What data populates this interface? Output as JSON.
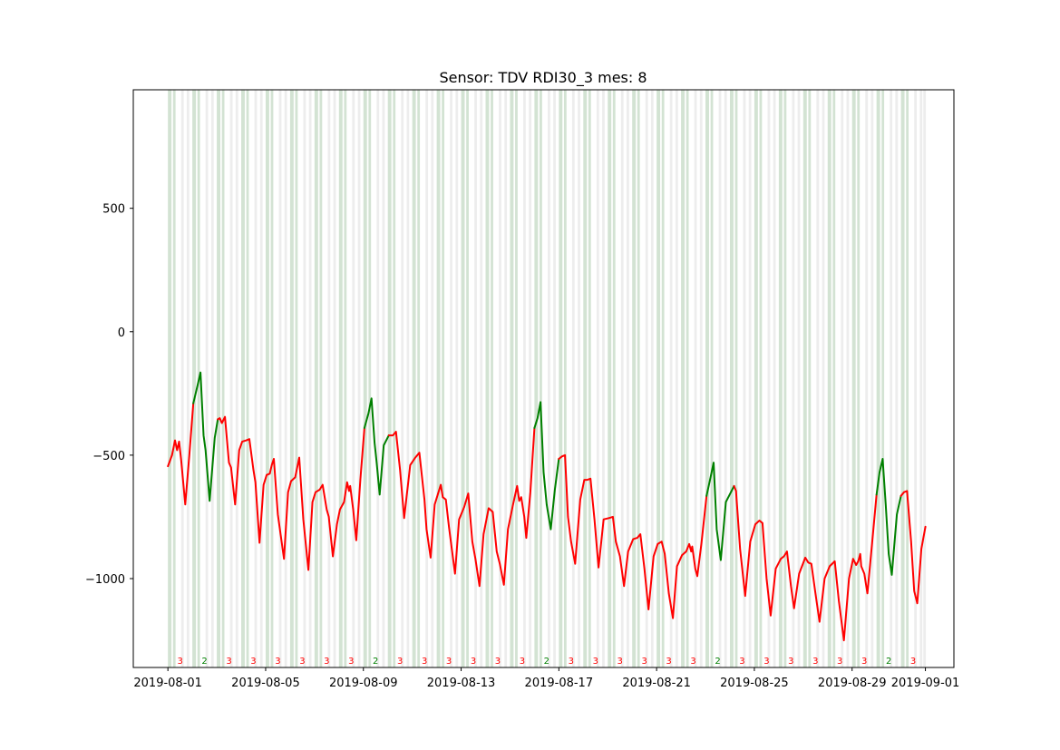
{
  "chart_data": {
    "type": "line",
    "title": "Sensor: TDV RDI30_3 mes: 8",
    "xlabel": "",
    "ylabel": "",
    "x_range": [
      "2019-07-30T14:00",
      "2019-09-02T04:00"
    ],
    "ylim": [
      -1360,
      980
    ],
    "y_ticks": [
      500,
      0,
      -500,
      -1000
    ],
    "y_tick_labels": [
      "500",
      "0",
      "−500",
      "−1000"
    ],
    "x_ticks": [
      "2019-08-01",
      "2019-08-05",
      "2019-08-09",
      "2019-08-13",
      "2019-08-17",
      "2019-08-21",
      "2019-08-25",
      "2019-08-29",
      "2019-09-01"
    ],
    "x_tick_labels": [
      "2019-08-01",
      "2019-08-05",
      "2019-08-09",
      "2019-08-13",
      "2019-08-17",
      "2019-08-21",
      "2019-08-25",
      "2019-08-29",
      "2019-09-01"
    ],
    "grid": false,
    "colors": {
      "class_2": "#008000",
      "class_3": "#ff0000",
      "band_green": "#c8dcc8",
      "band_gray": "#e6e6e6"
    },
    "day_labels": [
      {
        "date": "2019-08-01",
        "label": "3"
      },
      {
        "date": "2019-08-02",
        "label": "2"
      },
      {
        "date": "2019-08-03",
        "label": "3"
      },
      {
        "date": "2019-08-04",
        "label": "3"
      },
      {
        "date": "2019-08-05",
        "label": "3"
      },
      {
        "date": "2019-08-06",
        "label": "3"
      },
      {
        "date": "2019-08-07",
        "label": "3"
      },
      {
        "date": "2019-08-08",
        "label": "3"
      },
      {
        "date": "2019-08-09",
        "label": "2"
      },
      {
        "date": "2019-08-10",
        "label": "3"
      },
      {
        "date": "2019-08-11",
        "label": "3"
      },
      {
        "date": "2019-08-12",
        "label": "3"
      },
      {
        "date": "2019-08-13",
        "label": "3"
      },
      {
        "date": "2019-08-14",
        "label": "3"
      },
      {
        "date": "2019-08-15",
        "label": "3"
      },
      {
        "date": "2019-08-16",
        "label": "2"
      },
      {
        "date": "2019-08-17",
        "label": "3"
      },
      {
        "date": "2019-08-18",
        "label": "3"
      },
      {
        "date": "2019-08-19",
        "label": "3"
      },
      {
        "date": "2019-08-20",
        "label": "3"
      },
      {
        "date": "2019-08-21",
        "label": "3"
      },
      {
        "date": "2019-08-22",
        "label": "3"
      },
      {
        "date": "2019-08-23",
        "label": "2"
      },
      {
        "date": "2019-08-24",
        "label": "3"
      },
      {
        "date": "2019-08-25",
        "label": "3"
      },
      {
        "date": "2019-08-26",
        "label": "3"
      },
      {
        "date": "2019-08-27",
        "label": "3"
      },
      {
        "date": "2019-08-28",
        "label": "3"
      },
      {
        "date": "2019-08-29",
        "label": "3"
      },
      {
        "date": "2019-08-30",
        "label": "2"
      },
      {
        "date": "2019-08-31",
        "label": "3"
      }
    ],
    "series": [
      {
        "class": "3",
        "points": [
          [
            "2019-08-01T00:00",
            -545
          ],
          [
            "2019-08-01T04:00",
            -500
          ],
          [
            "2019-08-01T07:00",
            -440
          ],
          [
            "2019-08-01T09:00",
            -480
          ],
          [
            "2019-08-01T11:00",
            -445
          ],
          [
            "2019-08-01T13:00",
            -520
          ],
          [
            "2019-08-01T17:00",
            -700
          ],
          [
            "2019-08-01T21:00",
            -500
          ],
          [
            "2019-08-02T01:00",
            -290
          ]
        ]
      },
      {
        "class": "2",
        "points": [
          [
            "2019-08-02T01:00",
            -290
          ],
          [
            "2019-08-02T05:00",
            -220
          ],
          [
            "2019-08-02T08:00",
            -165
          ],
          [
            "2019-08-02T11:00",
            -420
          ],
          [
            "2019-08-02T13:00",
            -480
          ],
          [
            "2019-08-02T17:00",
            -685
          ],
          [
            "2019-08-02T22:00",
            -430
          ],
          [
            "2019-08-03T01:00",
            -355
          ]
        ]
      },
      {
        "class": "3",
        "points": [
          [
            "2019-08-03T01:00",
            -355
          ],
          [
            "2019-08-03T03:00",
            -350
          ],
          [
            "2019-08-03T05:00",
            -370
          ],
          [
            "2019-08-03T08:00",
            -345
          ],
          [
            "2019-08-03T12:00",
            -530
          ],
          [
            "2019-08-03T14:00",
            -550
          ],
          [
            "2019-08-03T18:00",
            -700
          ],
          [
            "2019-08-03T22:00",
            -480
          ],
          [
            "2019-08-04T01:00",
            -445
          ],
          [
            "2019-08-04T05:00",
            -440
          ],
          [
            "2019-08-04T08:00",
            -435
          ],
          [
            "2019-08-04T12:00",
            -560
          ],
          [
            "2019-08-04T14:00",
            -610
          ],
          [
            "2019-08-04T18:00",
            -855
          ],
          [
            "2019-08-04T22:00",
            -620
          ],
          [
            "2019-08-05T01:00",
            -580
          ],
          [
            "2019-08-05T04:00",
            -575
          ],
          [
            "2019-08-05T06:00",
            -540
          ],
          [
            "2019-08-05T08:00",
            -515
          ],
          [
            "2019-08-05T12:00",
            -740
          ],
          [
            "2019-08-05T18:00",
            -920
          ],
          [
            "2019-08-05T22:00",
            -650
          ],
          [
            "2019-08-06T01:00",
            -605
          ],
          [
            "2019-08-06T05:00",
            -590
          ],
          [
            "2019-08-06T09:00",
            -510
          ],
          [
            "2019-08-06T13:00",
            -760
          ],
          [
            "2019-08-06T18:00",
            -965
          ],
          [
            "2019-08-06T22:00",
            -690
          ],
          [
            "2019-08-07T01:00",
            -650
          ],
          [
            "2019-08-07T05:00",
            -640
          ],
          [
            "2019-08-07T08:00",
            -620
          ],
          [
            "2019-08-07T12:00",
            -720
          ],
          [
            "2019-08-07T14:00",
            -750
          ],
          [
            "2019-08-07T18:00",
            -910
          ],
          [
            "2019-08-07T22:00",
            -780
          ],
          [
            "2019-08-08T01:00",
            -720
          ],
          [
            "2019-08-08T05:00",
            -690
          ],
          [
            "2019-08-08T08:00",
            -610
          ],
          [
            "2019-08-08T10:00",
            -645
          ],
          [
            "2019-08-08T11:00",
            -625
          ],
          [
            "2019-08-08T14:00",
            -720
          ],
          [
            "2019-08-08T17:00",
            -845
          ],
          [
            "2019-08-08T21:00",
            -600
          ],
          [
            "2019-08-09T01:00",
            -390
          ]
        ]
      },
      {
        "class": "2",
        "points": [
          [
            "2019-08-09T01:00",
            -390
          ],
          [
            "2019-08-09T05:00",
            -330
          ],
          [
            "2019-08-09T08:00",
            -270
          ],
          [
            "2019-08-09T11:00",
            -450
          ],
          [
            "2019-08-09T13:00",
            -530
          ],
          [
            "2019-08-09T16:00",
            -660
          ],
          [
            "2019-08-09T20:00",
            -460
          ],
          [
            "2019-08-10T01:00",
            -420
          ]
        ]
      },
      {
        "class": "3",
        "points": [
          [
            "2019-08-10T01:00",
            -420
          ],
          [
            "2019-08-10T05:00",
            -420
          ],
          [
            "2019-08-10T08:00",
            -405
          ],
          [
            "2019-08-10T12:00",
            -560
          ],
          [
            "2019-08-10T16:00",
            -755
          ],
          [
            "2019-08-10T22:00",
            -540
          ],
          [
            "2019-08-11T03:00",
            -510
          ],
          [
            "2019-08-11T07:00",
            -490
          ],
          [
            "2019-08-11T12:00",
            -680
          ],
          [
            "2019-08-11T14:00",
            -800
          ],
          [
            "2019-08-11T18:00",
            -915
          ],
          [
            "2019-08-11T22:00",
            -700
          ],
          [
            "2019-08-12T04:00",
            -620
          ],
          [
            "2019-08-12T06:00",
            -670
          ],
          [
            "2019-08-12T09:00",
            -680
          ],
          [
            "2019-08-12T12:00",
            -790
          ],
          [
            "2019-08-12T18:00",
            -980
          ],
          [
            "2019-08-12T22:00",
            -760
          ],
          [
            "2019-08-13T03:00",
            -710
          ],
          [
            "2019-08-13T07:00",
            -655
          ],
          [
            "2019-08-13T11:00",
            -850
          ],
          [
            "2019-08-13T14:00",
            -920
          ],
          [
            "2019-08-13T18:00",
            -1030
          ],
          [
            "2019-08-13T22:00",
            -820
          ],
          [
            "2019-08-14T03:00",
            -715
          ],
          [
            "2019-08-14T07:00",
            -730
          ],
          [
            "2019-08-14T11:00",
            -890
          ],
          [
            "2019-08-14T14:00",
            -940
          ],
          [
            "2019-08-14T18:00",
            -1025
          ],
          [
            "2019-08-14T22:00",
            -800
          ],
          [
            "2019-08-15T03:00",
            -700
          ],
          [
            "2019-08-15T07:00",
            -625
          ],
          [
            "2019-08-15T09:00",
            -685
          ],
          [
            "2019-08-15T11:00",
            -670
          ],
          [
            "2019-08-15T14:00",
            -750
          ],
          [
            "2019-08-15T16:00",
            -835
          ],
          [
            "2019-08-15T20:00",
            -650
          ],
          [
            "2019-08-16T00:00",
            -390
          ]
        ]
      },
      {
        "class": "2",
        "points": [
          [
            "2019-08-16T00:00",
            -390
          ],
          [
            "2019-08-16T03:00",
            -350
          ],
          [
            "2019-08-16T06:00",
            -285
          ],
          [
            "2019-08-16T09:00",
            -570
          ],
          [
            "2019-08-16T12:00",
            -700
          ],
          [
            "2019-08-16T16:00",
            -800
          ],
          [
            "2019-08-16T20:00",
            -640
          ],
          [
            "2019-08-17T00:00",
            -515
          ]
        ]
      },
      {
        "class": "3",
        "points": [
          [
            "2019-08-17T00:00",
            -515
          ],
          [
            "2019-08-17T03:00",
            -505
          ],
          [
            "2019-08-17T06:00",
            -500
          ],
          [
            "2019-08-17T09:00",
            -750
          ],
          [
            "2019-08-17T12:00",
            -850
          ],
          [
            "2019-08-17T16:00",
            -940
          ],
          [
            "2019-08-17T21:00",
            -680
          ],
          [
            "2019-08-18T01:00",
            -600
          ],
          [
            "2019-08-18T04:00",
            -600
          ],
          [
            "2019-08-18T07:00",
            -595
          ],
          [
            "2019-08-18T11:00",
            -760
          ],
          [
            "2019-08-18T15:00",
            -955
          ],
          [
            "2019-08-18T20:00",
            -760
          ],
          [
            "2019-08-19T01:00",
            -755
          ],
          [
            "2019-08-19T05:00",
            -750
          ],
          [
            "2019-08-19T08:00",
            -850
          ],
          [
            "2019-08-19T12:00",
            -910
          ],
          [
            "2019-08-19T16:00",
            -1030
          ],
          [
            "2019-08-19T20:00",
            -890
          ],
          [
            "2019-08-20T01:00",
            -840
          ],
          [
            "2019-08-20T05:00",
            -835
          ],
          [
            "2019-08-20T08:00",
            -820
          ],
          [
            "2019-08-20T12:00",
            -960
          ],
          [
            "2019-08-20T16:00",
            -1125
          ],
          [
            "2019-08-20T21:00",
            -910
          ],
          [
            "2019-08-21T01:00",
            -860
          ],
          [
            "2019-08-21T05:00",
            -850
          ],
          [
            "2019-08-21T08:00",
            -900
          ],
          [
            "2019-08-21T12:00",
            -1060
          ],
          [
            "2019-08-21T16:00",
            -1160
          ],
          [
            "2019-08-21T20:00",
            -950
          ],
          [
            "2019-08-22T01:00",
            -905
          ],
          [
            "2019-08-22T05:00",
            -890
          ],
          [
            "2019-08-22T08:00",
            -860
          ],
          [
            "2019-08-22T10:00",
            -890
          ],
          [
            "2019-08-22T11:00",
            -870
          ],
          [
            "2019-08-22T14:00",
            -960
          ],
          [
            "2019-08-22T16:00",
            -990
          ],
          [
            "2019-08-22T20:00",
            -860
          ],
          [
            "2019-08-23T01:00",
            -665
          ]
        ]
      },
      {
        "class": "2",
        "points": [
          [
            "2019-08-23T01:00",
            -665
          ],
          [
            "2019-08-23T05:00",
            -590
          ],
          [
            "2019-08-23T08:00",
            -530
          ],
          [
            "2019-08-23T11:00",
            -800
          ],
          [
            "2019-08-23T15:00",
            -925
          ],
          [
            "2019-08-23T20:00",
            -690
          ],
          [
            "2019-08-24T01:00",
            -650
          ],
          [
            "2019-08-24T04:00",
            -625
          ]
        ]
      },
      {
        "class": "3",
        "points": [
          [
            "2019-08-24T04:00",
            -625
          ],
          [
            "2019-08-24T06:00",
            -645
          ],
          [
            "2019-08-24T10:00",
            -880
          ],
          [
            "2019-08-24T15:00",
            -1070
          ],
          [
            "2019-08-24T20:00",
            -850
          ],
          [
            "2019-08-25T01:00",
            -780
          ],
          [
            "2019-08-25T05:00",
            -765
          ],
          [
            "2019-08-25T08:00",
            -775
          ],
          [
            "2019-08-25T12:00",
            -1000
          ],
          [
            "2019-08-25T16:00",
            -1150
          ],
          [
            "2019-08-25T21:00",
            -960
          ],
          [
            "2019-08-26T02:00",
            -920
          ],
          [
            "2019-08-26T05:00",
            -910
          ],
          [
            "2019-08-26T08:00",
            -890
          ],
          [
            "2019-08-26T12:00",
            -1030
          ],
          [
            "2019-08-26T15:00",
            -1120
          ],
          [
            "2019-08-26T20:00",
            -980
          ],
          [
            "2019-08-27T02:00",
            -915
          ],
          [
            "2019-08-27T05:00",
            -935
          ],
          [
            "2019-08-27T08:00",
            -940
          ],
          [
            "2019-08-27T12:00",
            -1060
          ],
          [
            "2019-08-27T16:00",
            -1175
          ],
          [
            "2019-08-27T21:00",
            -1000
          ],
          [
            "2019-08-28T02:00",
            -950
          ],
          [
            "2019-08-28T07:00",
            -930
          ],
          [
            "2019-08-28T11:00",
            -1090
          ],
          [
            "2019-08-28T16:00",
            -1250
          ],
          [
            "2019-08-28T21:00",
            -1000
          ],
          [
            "2019-08-29T01:00",
            -920
          ],
          [
            "2019-08-29T04:00",
            -945
          ],
          [
            "2019-08-29T06:00",
            -930
          ],
          [
            "2019-08-29T08:00",
            -900
          ],
          [
            "2019-08-29T09:00",
            -950
          ],
          [
            "2019-08-29T12:00",
            -980
          ],
          [
            "2019-08-29T15:00",
            -1060
          ],
          [
            "2019-08-29T20:00",
            -840
          ],
          [
            "2019-08-30T00:00",
            -660
          ]
        ]
      },
      {
        "class": "2",
        "points": [
          [
            "2019-08-30T00:00",
            -660
          ],
          [
            "2019-08-30T03:00",
            -570
          ],
          [
            "2019-08-30T06:00",
            -515
          ],
          [
            "2019-08-30T09:00",
            -700
          ],
          [
            "2019-08-30T12:00",
            -900
          ],
          [
            "2019-08-30T15:00",
            -985
          ],
          [
            "2019-08-30T20:00",
            -740
          ],
          [
            "2019-08-31T00:00",
            -665
          ]
        ]
      },
      {
        "class": "3",
        "points": [
          [
            "2019-08-31T00:00",
            -665
          ],
          [
            "2019-08-31T03:00",
            -650
          ],
          [
            "2019-08-31T06:00",
            -645
          ],
          [
            "2019-08-31T10:00",
            -850
          ],
          [
            "2019-08-31T13:00",
            -1050
          ],
          [
            "2019-08-31T16:00",
            -1100
          ],
          [
            "2019-08-31T20:00",
            -880
          ],
          [
            "2019-09-01T00:00",
            -790
          ]
        ]
      }
    ]
  }
}
